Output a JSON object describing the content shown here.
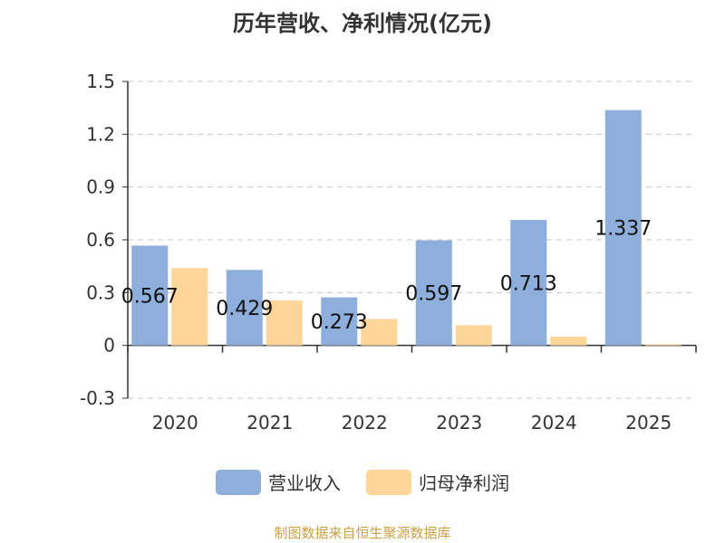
{
  "chart_data": {
    "type": "bar",
    "title": "历年营收、净利情况(亿元)",
    "categories": [
      "2020",
      "2021",
      "2022",
      "2023",
      "2024",
      "2025"
    ],
    "series": [
      {
        "name": "营业收入",
        "color": "#8eaedb",
        "values": [
          0.567,
          0.429,
          0.273,
          0.597,
          0.713,
          1.337
        ]
      },
      {
        "name": "归母净利润",
        "color": "#ffd699",
        "values": [
          0.44,
          0.255,
          0.15,
          0.115,
          0.05,
          0.005
        ]
      }
    ],
    "data_labels": [
      "0.567",
      "0.429",
      "0.273",
      "0.597",
      "0.713",
      "1.337"
    ],
    "y_ticks": [
      "1.5",
      "1.2",
      "0.9",
      "0.6",
      "0.3",
      "0",
      "-0.3"
    ],
    "ylim": [
      -0.3,
      1.5
    ],
    "grid": true,
    "legend_position": "bottom"
  },
  "source_text": "制图数据来自恒生聚源数据库"
}
